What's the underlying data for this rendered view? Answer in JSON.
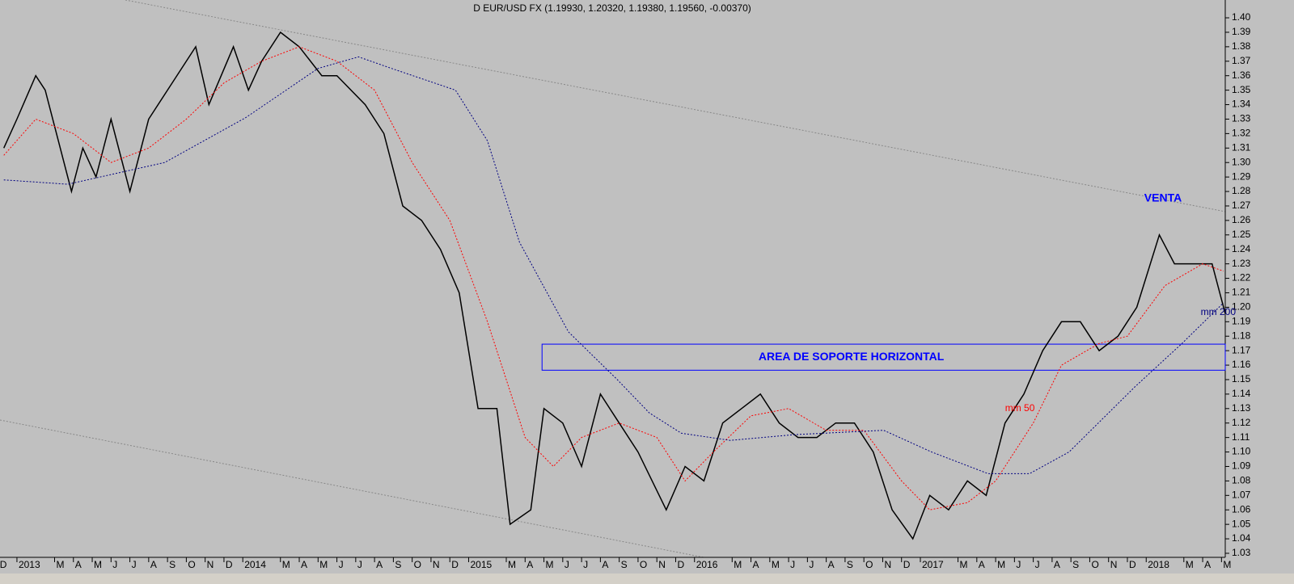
{
  "chart_data": {
    "type": "line",
    "title": "D EUR/USD FX (1.19930, 1.20320, 1.19380, 1.19560, -0.00370)",
    "annotations": [
      "VENTA"
    ],
    "support_zone": {
      "label": "AREA DE SOPORTE HORIZONTAL",
      "x": [
        27.9,
        64.2
      ],
      "y": [
        1.1565,
        1.1745
      ],
      "color": "#0000ff"
    },
    "xlim": [
      -0.9,
      64.2
    ],
    "ylim": [
      1.0272,
      1.4123
    ],
    "xticks": [
      {
        "value": -1,
        "label": "D"
      },
      {
        "value": 0,
        "label": "2013"
      },
      {
        "value": 2,
        "label": "M"
      },
      {
        "value": 3,
        "label": "A"
      },
      {
        "value": 4,
        "label": "M"
      },
      {
        "value": 5,
        "label": "J"
      },
      {
        "value": 6,
        "label": "J"
      },
      {
        "value": 7,
        "label": "A"
      },
      {
        "value": 8,
        "label": "S"
      },
      {
        "value": 9,
        "label": "O"
      },
      {
        "value": 10,
        "label": "N"
      },
      {
        "value": 11,
        "label": "D"
      },
      {
        "value": 12,
        "label": "2014"
      },
      {
        "value": 14,
        "label": "M"
      },
      {
        "value": 15,
        "label": "A"
      },
      {
        "value": 16,
        "label": "M"
      },
      {
        "value": 17,
        "label": "J"
      },
      {
        "value": 18,
        "label": "J"
      },
      {
        "value": 19,
        "label": "A"
      },
      {
        "value": 20,
        "label": "S"
      },
      {
        "value": 21,
        "label": "O"
      },
      {
        "value": 22,
        "label": "N"
      },
      {
        "value": 23,
        "label": "D"
      },
      {
        "value": 24,
        "label": "2015"
      },
      {
        "value": 26,
        "label": "M"
      },
      {
        "value": 27,
        "label": "A"
      },
      {
        "value": 28,
        "label": "M"
      },
      {
        "value": 29,
        "label": "J"
      },
      {
        "value": 30,
        "label": "J"
      },
      {
        "value": 31,
        "label": "A"
      },
      {
        "value": 32,
        "label": "S"
      },
      {
        "value": 33,
        "label": "O"
      },
      {
        "value": 34,
        "label": "N"
      },
      {
        "value": 35,
        "label": "D"
      },
      {
        "value": 36,
        "label": "2016"
      },
      {
        "value": 38,
        "label": "M"
      },
      {
        "value": 39,
        "label": "A"
      },
      {
        "value": 40,
        "label": "M"
      },
      {
        "value": 41,
        "label": "J"
      },
      {
        "value": 42,
        "label": "J"
      },
      {
        "value": 43,
        "label": "A"
      },
      {
        "value": 44,
        "label": "S"
      },
      {
        "value": 45,
        "label": "O"
      },
      {
        "value": 46,
        "label": "N"
      },
      {
        "value": 47,
        "label": "D"
      },
      {
        "value": 48,
        "label": "2017"
      },
      {
        "value": 50,
        "label": "M"
      },
      {
        "value": 51,
        "label": "A"
      },
      {
        "value": 52,
        "label": "M"
      },
      {
        "value": 53,
        "label": "J"
      },
      {
        "value": 54,
        "label": "J"
      },
      {
        "value": 55,
        "label": "A"
      },
      {
        "value": 56,
        "label": "S"
      },
      {
        "value": 57,
        "label": "O"
      },
      {
        "value": 58,
        "label": "N"
      },
      {
        "value": 59,
        "label": "D"
      },
      {
        "value": 60,
        "label": "2018"
      },
      {
        "value": 62,
        "label": "M"
      },
      {
        "value": 63,
        "label": "A"
      },
      {
        "value": 64,
        "label": "M"
      }
    ],
    "yticks": [
      1.03,
      1.04,
      1.05,
      1.06,
      1.07,
      1.08,
      1.09,
      {
        "value": 1.1,
        "label": "1.10"
      },
      1.11,
      1.12,
      1.13,
      1.14,
      1.15,
      1.16,
      1.17,
      1.18,
      1.19,
      {
        "value": 1.2,
        "label": "1.20"
      },
      1.21,
      1.22,
      1.23,
      1.24,
      1.25,
      1.26,
      1.27,
      1.28,
      1.29,
      {
        "value": 1.3,
        "label": "1.30"
      },
      1.31,
      1.32,
      1.33,
      1.34,
      1.35,
      1.36,
      1.37,
      1.38,
      1.39,
      {
        "value": 1.4,
        "label": "1.40"
      }
    ],
    "series": [
      {
        "color": "#000000",
        "style": "solid",
        "x": [
          -0.7,
          0,
          1,
          1.5,
          2.9,
          3.5,
          4.2,
          5,
          6,
          7,
          8,
          9.5,
          10.2,
          11.5,
          12.3,
          13,
          14,
          15,
          16.2,
          17,
          18.5,
          19.5,
          20.5,
          21.5,
          22.5,
          23.5,
          24.5,
          25.5,
          26.2,
          27.3,
          28,
          29,
          30,
          31,
          32,
          33,
          34.5,
          35.5,
          36.5,
          37.5,
          38.5,
          39.5,
          40.5,
          41.5,
          42.5,
          43.5,
          44.5,
          45.5,
          46.5,
          47.6,
          48.5,
          49.5,
          50.5,
          51.5,
          52.5,
          53.5,
          54.5,
          55.5,
          56.5,
          57.5,
          58.5,
          59.5,
          60.7,
          61.5,
          62.5,
          63.5,
          64.2
        ],
        "values": [
          1.31,
          1.33,
          1.36,
          1.35,
          1.28,
          1.31,
          1.29,
          1.33,
          1.28,
          1.33,
          1.35,
          1.38,
          1.34,
          1.38,
          1.35,
          1.37,
          1.39,
          1.38,
          1.36,
          1.36,
          1.34,
          1.32,
          1.27,
          1.26,
          1.24,
          1.21,
          1.13,
          1.13,
          1.05,
          1.06,
          1.13,
          1.12,
          1.09,
          1.14,
          1.12,
          1.1,
          1.06,
          1.09,
          1.08,
          1.12,
          1.13,
          1.14,
          1.12,
          1.11,
          1.11,
          1.12,
          1.12,
          1.1,
          1.06,
          1.04,
          1.07,
          1.06,
          1.08,
          1.07,
          1.12,
          1.14,
          1.17,
          1.19,
          1.19,
          1.17,
          1.18,
          1.2,
          1.25,
          1.23,
          1.23,
          1.23,
          1.1956
        ]
      },
      {
        "name": "mm 50",
        "color": "#ff0000",
        "style": "dotted",
        "x": [
          -0.7,
          1,
          3,
          5,
          7,
          9,
          11,
          13,
          15,
          17,
          19,
          21,
          23,
          25,
          27,
          28.5,
          30,
          32,
          34,
          35.5,
          37,
          39,
          41,
          43,
          45,
          47,
          48.5,
          50.5,
          52,
          54,
          55.5,
          57.5,
          59,
          61,
          63,
          64.1
        ],
        "values": [
          1.305,
          1.33,
          1.32,
          1.3,
          1.31,
          1.33,
          1.355,
          1.37,
          1.38,
          1.37,
          1.35,
          1.3,
          1.26,
          1.19,
          1.11,
          1.09,
          1.11,
          1.12,
          1.11,
          1.08,
          1.1,
          1.125,
          1.13,
          1.115,
          1.115,
          1.08,
          1.06,
          1.065,
          1.08,
          1.12,
          1.16,
          1.175,
          1.18,
          1.215,
          1.23,
          1.225
        ]
      },
      {
        "name": "mm 200",
        "color": "#000080",
        "style": "dotted",
        "x": [
          -0.7,
          2.7,
          7.85,
          12.15,
          16,
          18.15,
          19.9,
          23.3,
          25,
          26.7,
          29.3,
          31.9,
          33.6,
          35.3,
          37.9,
          41.3,
          46.05,
          48.6,
          51.6,
          53.8,
          55.9,
          59.4,
          61.9,
          64.1
        ],
        "values": [
          1.288,
          1.285,
          1.3,
          1.331,
          1.365,
          1.373,
          1.365,
          1.35,
          1.315,
          1.245,
          1.183,
          1.15,
          1.127,
          1.113,
          1.108,
          1.112,
          1.115,
          1.1,
          1.085,
          1.085,
          1.1,
          1.145,
          1.175,
          1.203
        ]
      }
    ]
  }
}
